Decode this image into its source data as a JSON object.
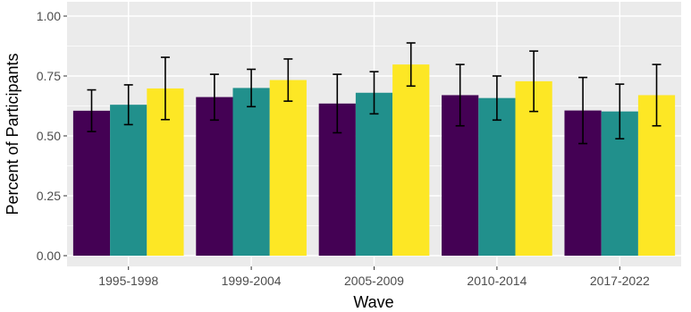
{
  "chart_data": {
    "type": "bar",
    "xlabel": "Wave",
    "ylabel": "Percent of Participants",
    "ylim": [
      0,
      1.0
    ],
    "yticks": [
      "0.00",
      "0.25",
      "0.50",
      "0.75",
      "1.00"
    ],
    "ytick_values": [
      0,
      0.25,
      0.5,
      0.75,
      1.0
    ],
    "categories": [
      "1995-1998",
      "1999-2004",
      "2005-2009",
      "2010-2014",
      "2017-2022"
    ],
    "series": [
      {
        "color": "#440154",
        "values": [
          0.605,
          0.662,
          0.635,
          0.67,
          0.606
        ],
        "error_low": [
          0.518,
          0.566,
          0.513,
          0.542,
          0.468
        ],
        "error_high": [
          0.692,
          0.757,
          0.757,
          0.798,
          0.744
        ]
      },
      {
        "color": "#21908C",
        "values": [
          0.63,
          0.7,
          0.68,
          0.658,
          0.602
        ],
        "error_low": [
          0.547,
          0.622,
          0.592,
          0.566,
          0.488
        ],
        "error_high": [
          0.713,
          0.778,
          0.768,
          0.75,
          0.716
        ]
      },
      {
        "color": "#FDE725",
        "values": [
          0.698,
          0.733,
          0.798,
          0.728,
          0.67
        ],
        "error_low": [
          0.568,
          0.645,
          0.708,
          0.602,
          0.542
        ],
        "error_high": [
          0.828,
          0.821,
          0.888,
          0.854,
          0.798
        ]
      }
    ],
    "grid": true,
    "panel_background": "#EBEBEB",
    "grid_color": "#FFFFFF",
    "legend": "none"
  }
}
